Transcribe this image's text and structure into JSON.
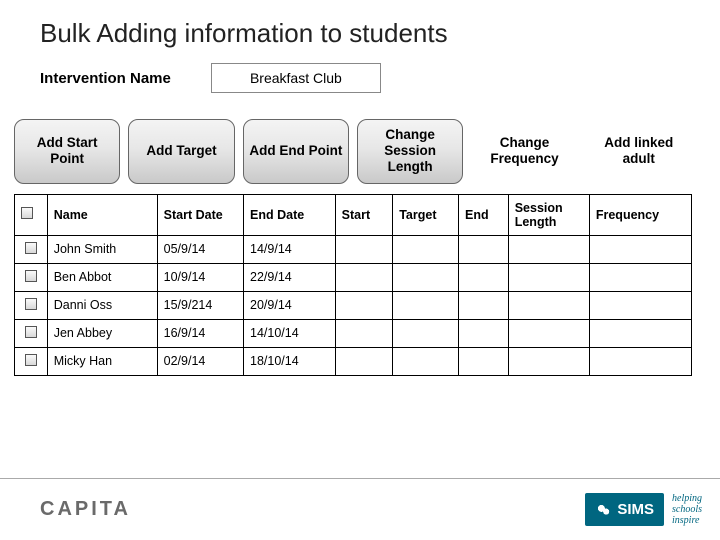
{
  "title": "Bulk Adding information to students",
  "intervention": {
    "label": "Intervention Name",
    "value": "Breakfast Club"
  },
  "buttons": [
    {
      "label": "Add Start Point",
      "flat": false
    },
    {
      "label": "Add Target",
      "flat": false
    },
    {
      "label": "Add End Point",
      "flat": false
    },
    {
      "label": "Change Session Length",
      "flat": false
    },
    {
      "label": "Change Frequency",
      "flat": true
    },
    {
      "label": "Add linked adult",
      "flat": true
    }
  ],
  "table": {
    "columns": [
      "",
      "Name",
      "Start Date",
      "End Date",
      "Start",
      "Target",
      "End",
      "Session Length",
      "Frequency"
    ],
    "col_classes": [
      "chk-col",
      "col-name",
      "col-sd",
      "col-ed",
      "col-start",
      "col-target",
      "col-end",
      "col-sl",
      "col-freq"
    ],
    "rows": [
      [
        "chk",
        "John Smith",
        "05/9/14",
        "14/9/14",
        "",
        "",
        "",
        "",
        ""
      ],
      [
        "chk",
        "Ben Abbot",
        "10/9/14",
        "22/9/14",
        "",
        "",
        "",
        "",
        ""
      ],
      [
        "chk",
        "Danni Oss",
        "15/9/214",
        "20/9/14",
        "",
        "",
        "",
        "",
        ""
      ],
      [
        "chk",
        "Jen Abbey",
        "16/9/14",
        "14/10/14",
        "",
        "",
        "",
        "",
        ""
      ],
      [
        "chk",
        "Micky Han",
        "02/9/14",
        "18/10/14",
        "",
        "",
        "",
        "",
        ""
      ]
    ]
  },
  "footer": {
    "brand_left": "CAPITA",
    "sims": "SIMS",
    "tagline_lines": [
      "helping",
      "schools",
      "inspire"
    ]
  },
  "colors": {
    "sims_teal": "#006680",
    "border": "#000000",
    "button_border": "#666666"
  }
}
